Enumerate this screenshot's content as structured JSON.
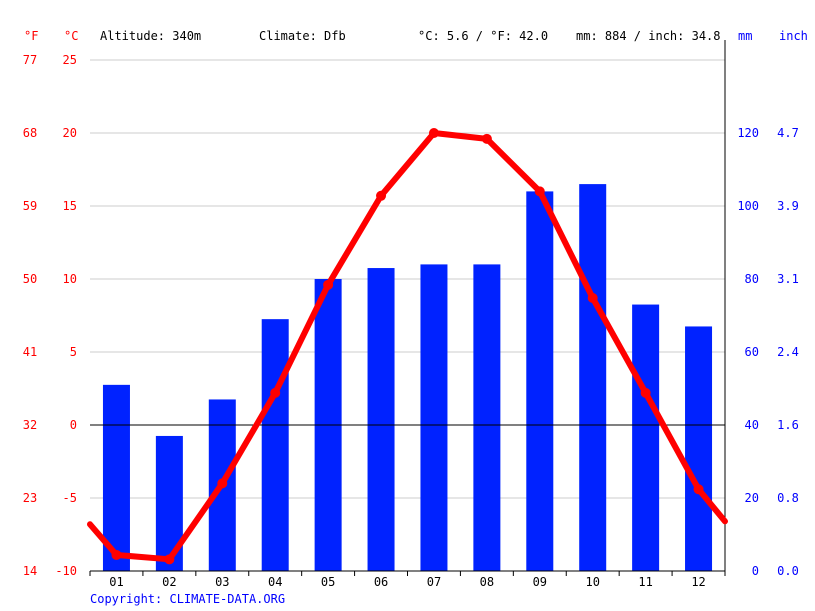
{
  "header": {
    "unit_f": "°F",
    "unit_c": "°C",
    "altitude": "Altitude: 340m",
    "climate": "Climate: Dfb",
    "temp_summary": "°C: 5.6 / °F: 42.0",
    "precip_summary": "mm: 884 / inch: 34.8",
    "unit_mm": "mm",
    "unit_inch": "inch"
  },
  "copyright": "Copyright: CLIMATE-DATA.ORG",
  "colors": {
    "precip": "#0022ff",
    "temp": "#ff0000",
    "axis_left": "#ff0000",
    "axis_right": "#0000ff",
    "grid": "#cccccc"
  },
  "chart_data": {
    "type": "bar+line",
    "categories": [
      "01",
      "02",
      "03",
      "04",
      "05",
      "06",
      "07",
      "08",
      "09",
      "10",
      "11",
      "12"
    ],
    "series": [
      {
        "type": "bar",
        "axis": "right",
        "values": [
          51,
          37,
          47,
          69,
          80,
          83,
          84,
          84,
          104,
          106,
          73,
          67
        ]
      },
      {
        "type": "line",
        "axis": "left",
        "values": [
          -8.9,
          -9.2,
          -4.0,
          2.2,
          9.6,
          15.7,
          20.0,
          19.6,
          16.0,
          8.7,
          2.2,
          -4.4
        ]
      }
    ],
    "line_extension": {
      "start_value": -6.8,
      "end_value": -6.6
    },
    "y_left_celsius": {
      "ticks": [
        -10,
        -5,
        0,
        5,
        10,
        15,
        20,
        25
      ],
      "range": [
        -10,
        25
      ]
    },
    "y_left_fahrenheit": {
      "ticks": [
        "14",
        "23",
        "32",
        "41",
        "50",
        "59",
        "68",
        "77"
      ]
    },
    "y_right_mm": {
      "ticks": [
        "0",
        "20",
        "40",
        "60",
        "80",
        "100",
        "120"
      ],
      "range": [
        0,
        140
      ]
    },
    "y_right_inch": {
      "ticks": [
        "0.0",
        "0.8",
        "1.6",
        "2.4",
        "3.1",
        "3.9",
        "4.7"
      ]
    },
    "grid": true,
    "zero_line": true
  }
}
